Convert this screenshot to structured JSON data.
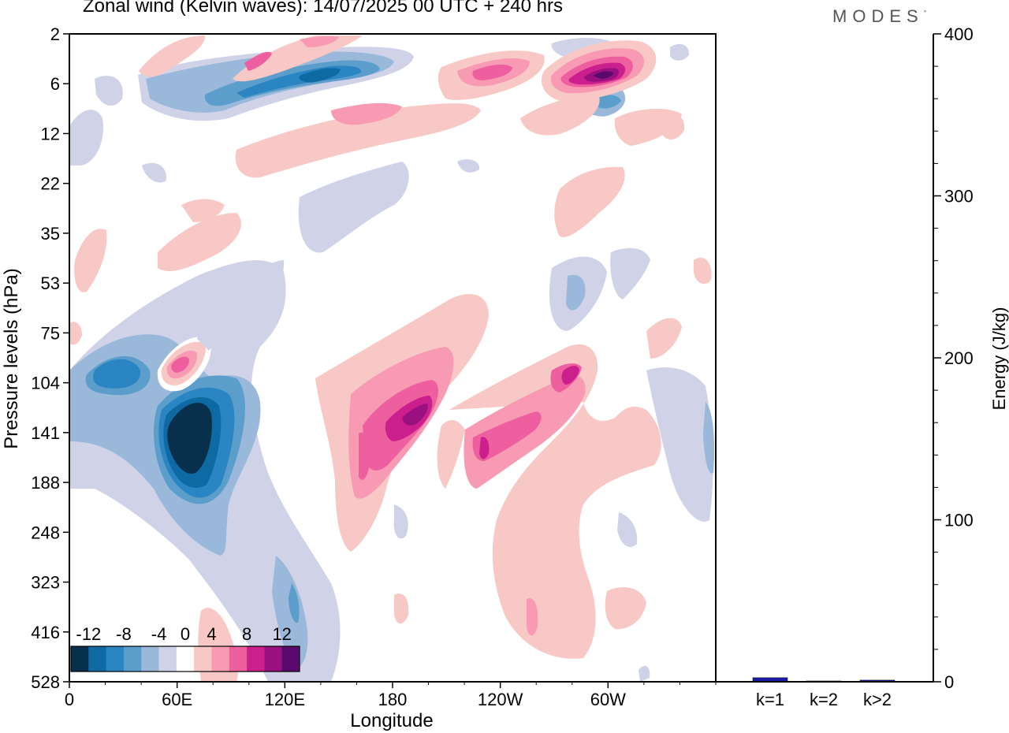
{
  "title": "Zonal wind (Kelvin waves):  14/07/2025  00 UTC  + 240 hrs",
  "brand": "MODES",
  "chart_data": [
    {
      "type": "heatmap",
      "xlabel": "Longitude",
      "ylabel": "Pressure levels (hPa)",
      "x_ticks": [
        "0",
        "60E",
        "120E",
        "180",
        "120W",
        "60W"
      ],
      "x_tick_values": [
        0,
        60,
        120,
        180,
        240,
        300
      ],
      "xlim": [
        0,
        360
      ],
      "y_ticks": [
        "2",
        "6",
        "12",
        "22",
        "35",
        "53",
        "75",
        "104",
        "141",
        "188",
        "248",
        "323",
        "416",
        "528"
      ],
      "colorbar": {
        "labels": [
          "-12",
          "-8",
          "-4",
          "0",
          "4",
          "8",
          "12"
        ],
        "levels": [
          -14,
          -12,
          -10,
          -8,
          -6,
          -4,
          -2,
          2,
          4,
          6,
          8,
          10,
          12,
          14
        ],
        "colors": [
          "#08304d",
          "#0f6aa3",
          "#2b85c2",
          "#5b9dcb",
          "#99b8da",
          "#d0d3e8",
          "#ffffff",
          "#f8c8c6",
          "#f89ab3",
          "#ee5f9f",
          "#cc1f8e",
          "#9b1081",
          "#5a0a6c"
        ]
      },
      "features": [
        {
          "sign": "negative",
          "value": -14,
          "lon": 66,
          "level": "141"
        },
        {
          "sign": "negative",
          "value": -8,
          "lon": 22,
          "level": "104"
        },
        {
          "sign": "negative",
          "value": -10,
          "lon": 135,
          "level": "6"
        },
        {
          "sign": "positive",
          "value": 10,
          "lon": 190,
          "level": "141"
        },
        {
          "sign": "positive",
          "value": 8,
          "lon": 282,
          "level": "104"
        },
        {
          "sign": "positive",
          "value": 14,
          "lon": 300,
          "level": "6"
        },
        {
          "sign": "positive",
          "value": 6,
          "lon": 57,
          "level": "104"
        }
      ]
    },
    {
      "type": "bar",
      "categories": [
        "k=1",
        "k=2",
        "k>2"
      ],
      "values": [
        2.5,
        0.5,
        1.0
      ],
      "ylabel": "Energy (J/kg)",
      "ylim": [
        0,
        400
      ],
      "y_ticks": [
        "0",
        "100",
        "200",
        "300",
        "400"
      ],
      "bar_color": "#1a1aa8"
    }
  ]
}
